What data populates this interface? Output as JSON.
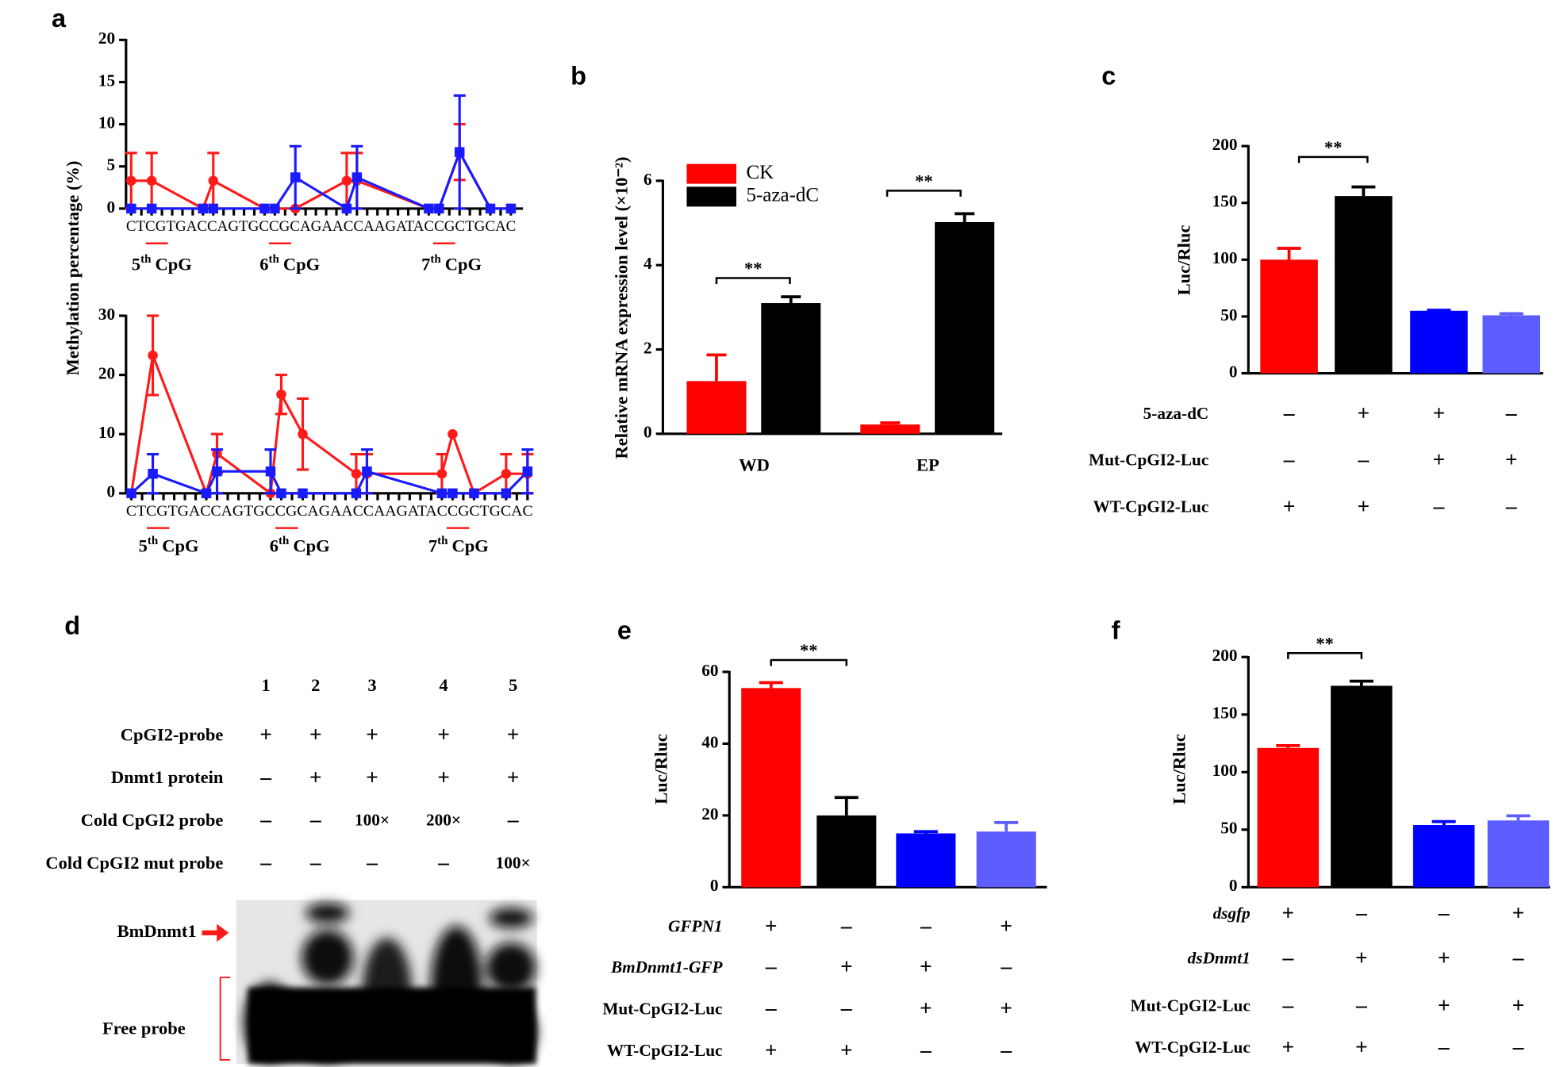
{
  "chart_data": [
    {
      "type": "line",
      "label": "a",
      "ylabel": "Methylation percentage (%)",
      "sequence": "CTCGTGACCAGTGCCGCAGAACCAAGATACCGCTGCAC",
      "cpg_labels": [
        {
          "num": "5",
          "sup": "th",
          "text": "CpG"
        },
        {
          "num": "6",
          "sup": "th",
          "text": "CpG"
        },
        {
          "num": "7",
          "sup": "th",
          "text": "CpG"
        }
      ],
      "ylim": [
        0,
        20
      ],
      "yticks": [
        0,
        5,
        10,
        15,
        20
      ],
      "series": [
        {
          "color": "#ff1a1a",
          "marker": "circle",
          "x": [
            1,
            3,
            8,
            9,
            14,
            15,
            17,
            22,
            23,
            30,
            31,
            33,
            36,
            38
          ],
          "values": [
            3.3,
            3.3,
            0,
            3.3,
            0,
            0,
            0,
            3.3,
            3.3,
            0,
            0,
            6.7,
            0,
            0
          ],
          "errors": [
            3.3,
            3.3,
            0,
            3.3,
            0,
            0,
            0,
            3.3,
            3.3,
            0,
            0,
            3.3,
            0,
            0
          ]
        },
        {
          "color": "#1a1aff",
          "marker": "square",
          "x": [
            1,
            3,
            8,
            9,
            14,
            15,
            17,
            22,
            23,
            30,
            31,
            33,
            36,
            38
          ],
          "values": [
            0,
            0,
            0,
            0,
            0,
            0,
            3.7,
            0,
            3.7,
            0,
            0,
            6.7,
            0,
            0
          ],
          "errors": [
            0,
            0,
            0,
            0,
            0,
            0,
            3.7,
            0,
            3.7,
            0,
            0,
            6.7,
            0,
            0
          ]
        }
      ]
    },
    {
      "type": "line",
      "sequence": "CTCGTGACCAGTGCCGCAGAACCAAGATACCGCTGCAC",
      "cpg_labels": [
        {
          "num": "5",
          "sup": "th",
          "text": "CpG"
        },
        {
          "num": "6",
          "sup": "th",
          "text": "CpG"
        },
        {
          "num": "7",
          "sup": "th",
          "text": "CpG"
        }
      ],
      "ylim": [
        0,
        30
      ],
      "yticks": [
        0,
        10,
        20,
        30
      ],
      "series": [
        {
          "color": "#ff1a1a",
          "marker": "circle",
          "x": [
            1,
            3,
            8,
            9,
            14,
            15,
            17,
            22,
            23,
            30,
            31,
            33,
            36,
            38
          ],
          "values": [
            0,
            23.3,
            0,
            6.7,
            0,
            16.7,
            10,
            3.3,
            3.3,
            3.3,
            10,
            0,
            3.3,
            3.3
          ],
          "errors": [
            0,
            6.7,
            0,
            3.3,
            0,
            3.3,
            6,
            3.3,
            3.3,
            3.3,
            0,
            0,
            3.3,
            3.3
          ]
        },
        {
          "color": "#1a1aff",
          "marker": "square",
          "x": [
            1,
            3,
            8,
            9,
            14,
            15,
            17,
            22,
            23,
            30,
            31,
            33,
            36,
            38
          ],
          "values": [
            0,
            3.3,
            0,
            3.7,
            3.7,
            0,
            0,
            0,
            3.7,
            0,
            0,
            0,
            0,
            3.7
          ],
          "errors": [
            0,
            3.3,
            0,
            3.7,
            3.7,
            0,
            0,
            0,
            3.7,
            0,
            0,
            0,
            0,
            3.7
          ]
        }
      ]
    },
    {
      "type": "bar",
      "label": "b",
      "ylabel": "Relative mRNA expression level  (×10⁻²)",
      "categories": [
        "WD",
        "EP"
      ],
      "ylim": [
        0,
        6
      ],
      "yticks": [
        0,
        2,
        4,
        6
      ],
      "series": [
        {
          "name": "CK",
          "color": "#ff0000",
          "values": [
            1.25,
            0.22
          ],
          "errors": [
            0.62,
            0.04
          ]
        },
        {
          "name": "5-aza-dC",
          "color": "#000000",
          "values": [
            3.1,
            5.02
          ],
          "errors": [
            0.15,
            0.2
          ]
        }
      ],
      "significance": [
        "**",
        "**"
      ]
    },
    {
      "type": "bar",
      "label": "c",
      "ylabel": "Luc/Rluc",
      "values": [
        100,
        156,
        55,
        51
      ],
      "errors": [
        10,
        8,
        0.5,
        1.5
      ],
      "colors": [
        "#ff0000",
        "#000000",
        "#0000ff",
        "#5c5cff"
      ],
      "ylim": [
        0,
        200
      ],
      "yticks": [
        0,
        50,
        100,
        150,
        200
      ],
      "conditions": [
        {
          "name": "5-aza-dC",
          "values": [
            "–",
            "+",
            "+",
            "–"
          ]
        },
        {
          "name": "Mut-CpGI2-Luc",
          "values": [
            "–",
            "–",
            "+",
            "+"
          ]
        },
        {
          "name": "WT-CpGI2-Luc",
          "values": [
            "+",
            "+",
            "–",
            "–"
          ]
        }
      ],
      "italic_conditions": [
        false,
        false,
        false
      ],
      "significance": [
        "**"
      ]
    },
    {
      "type": "bar",
      "label": "e",
      "ylabel": "Luc/Rluc",
      "values": [
        55.5,
        20,
        15,
        15.5
      ],
      "errors": [
        1.5,
        5,
        0.5,
        2.5
      ],
      "colors": [
        "#ff0000",
        "#000000",
        "#0000ff",
        "#5c5cff"
      ],
      "ylim": [
        0,
        60
      ],
      "yticks": [
        0,
        20,
        40,
        60
      ],
      "conditions": [
        {
          "name": "GFPN1",
          "values": [
            "+",
            "–",
            "–",
            "+"
          ]
        },
        {
          "name": "BmDnmt1-GFP",
          "values": [
            "–",
            "+",
            "+",
            "–"
          ]
        },
        {
          "name": "Mut-CpGI2-Luc",
          "values": [
            "–",
            "–",
            "+",
            "+"
          ]
        },
        {
          "name": "WT-CpGI2-Luc",
          "values": [
            "+",
            "+",
            "–",
            "–"
          ]
        }
      ],
      "italic_conditions": [
        true,
        true,
        false,
        false
      ],
      "significance": [
        "**"
      ]
    },
    {
      "type": "bar",
      "label": "f",
      "ylabel": "Luc/Rluc",
      "values": [
        121,
        175,
        54,
        58
      ],
      "errors": [
        2,
        4,
        3,
        4
      ],
      "colors": [
        "#ff0000",
        "#000000",
        "#0000ff",
        "#5c5cff"
      ],
      "ylim": [
        0,
        200
      ],
      "yticks": [
        0,
        50,
        100,
        150,
        200
      ],
      "conditions": [
        {
          "name": "dsgfp",
          "values": [
            "+",
            "–",
            "–",
            "+"
          ]
        },
        {
          "name": "dsDnmt1",
          "values": [
            "–",
            "+",
            "+",
            "–"
          ]
        },
        {
          "name": "Mut-CpGI2-Luc",
          "values": [
            "–",
            "–",
            "+",
            "+"
          ]
        },
        {
          "name": "WT-CpGI2-Luc",
          "values": [
            "+",
            "+",
            "–",
            "–"
          ]
        }
      ],
      "italic_conditions": [
        true,
        true,
        false,
        false
      ],
      "significance": [
        "**"
      ]
    }
  ],
  "gel": {
    "label": "d",
    "lanes": [
      "1",
      "2",
      "3",
      "4",
      "5"
    ],
    "rows": [
      {
        "name": "CpGI2-probe",
        "values": [
          "+",
          "+",
          "+",
          "+",
          "+"
        ]
      },
      {
        "name": "Dnmt1 protein",
        "values": [
          "–",
          "+",
          "+",
          "+",
          "+"
        ]
      },
      {
        "name": "Cold CpGI2 probe",
        "values": [
          "–",
          "–",
          "100×",
          "200×",
          "–"
        ]
      },
      {
        "name": "Cold CpGI2  mut probe",
        "values": [
          "–",
          "–",
          "–",
          "–",
          "100×"
        ]
      }
    ],
    "band_label": "BmDnmt1",
    "free_label": "Free probe"
  }
}
